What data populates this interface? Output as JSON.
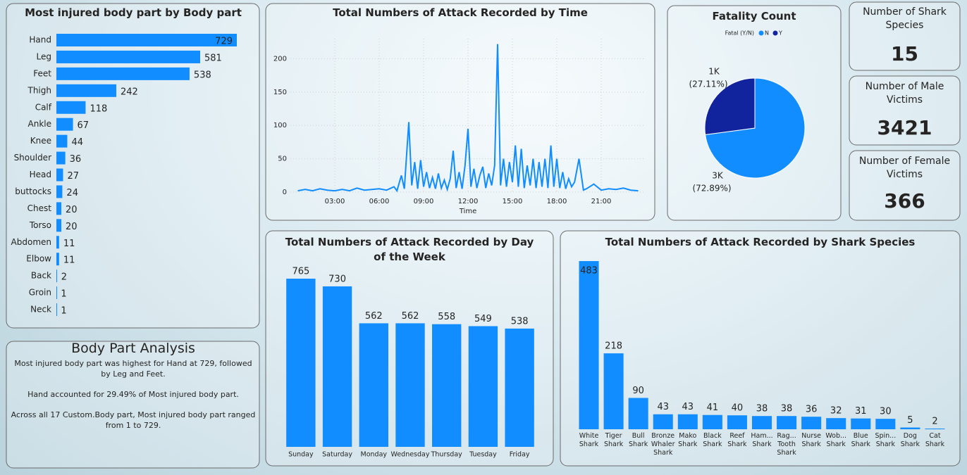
{
  "chart_data": [
    {
      "type": "bar",
      "orientation": "horizontal",
      "title": "Most injured body part by Body part",
      "color": "#118dff",
      "categories": [
        "Hand",
        "Leg",
        "Feet",
        "Thigh",
        "Calf",
        "Ankle",
        "Knee",
        "Shoulder",
        "Head",
        "buttocks",
        "Chest",
        "Torso",
        "Abdomen",
        "Elbow",
        "Back",
        "Groin",
        "Neck"
      ],
      "values": [
        729,
        581,
        538,
        242,
        118,
        67,
        44,
        36,
        27,
        24,
        20,
        20,
        11,
        11,
        2,
        1,
        1
      ]
    },
    {
      "type": "line",
      "title": "Total Numbers of Attack Recorded by Time",
      "x_label": "Time",
      "color": "#118dff",
      "x": [
        0.5,
        1,
        1.5,
        2,
        2.5,
        3,
        3.5,
        4,
        4.5,
        5,
        5.5,
        6,
        6.5,
        7,
        7.2,
        7.5,
        7.7,
        8,
        8.2,
        8.4,
        8.6,
        8.8,
        9,
        9.2,
        9.4,
        9.6,
        9.8,
        10,
        10.2,
        10.4,
        10.6,
        10.8,
        11,
        11.2,
        11.4,
        11.6,
        11.8,
        12,
        12.2,
        12.4,
        12.6,
        12.8,
        13,
        13.2,
        13.4,
        13.6,
        13.8,
        14,
        14.2,
        14.4,
        14.6,
        14.8,
        15,
        15.2,
        15.4,
        15.6,
        15.8,
        16,
        16.2,
        16.4,
        16.6,
        16.8,
        17,
        17.2,
        17.4,
        17.6,
        17.8,
        18,
        18.2,
        18.4,
        18.6,
        18.8,
        19,
        19.2,
        19.5,
        19.8,
        20,
        20.5,
        21,
        21.5,
        22,
        22.5,
        23,
        23.5
      ],
      "values": [
        2,
        4,
        2,
        5,
        3,
        2,
        4,
        2,
        6,
        3,
        4,
        5,
        3,
        8,
        2,
        25,
        5,
        105,
        10,
        45,
        5,
        48,
        8,
        30,
        6,
        22,
        5,
        28,
        6,
        18,
        4,
        20,
        62,
        6,
        30,
        5,
        40,
        95,
        8,
        35,
        6,
        25,
        38,
        6,
        28,
        10,
        40,
        222,
        10,
        50,
        8,
        45,
        15,
        70,
        8,
        65,
        6,
        40,
        10,
        50,
        6,
        45,
        8,
        50,
        6,
        70,
        8,
        50,
        6,
        30,
        5,
        20,
        8,
        15,
        50,
        3,
        5,
        12,
        3,
        5,
        4,
        6,
        3,
        2
      ],
      "xlim": [
        0,
        24
      ],
      "xticks": [
        {
          "value": 3,
          "label": "03:00"
        },
        {
          "value": 6,
          "label": "06:00"
        },
        {
          "value": 9,
          "label": "09:00"
        },
        {
          "value": 12,
          "label": "12:00"
        },
        {
          "value": 15,
          "label": "15:00"
        },
        {
          "value": 18,
          "label": "18:00"
        },
        {
          "value": 21,
          "label": "21:00"
        }
      ],
      "ylim": [
        0,
        230
      ],
      "yticks": [
        0,
        50,
        100,
        150,
        200
      ],
      "grid": true
    },
    {
      "type": "pie",
      "title": "Fatality Count",
      "legend_title": "Fatal (Y/N)",
      "categories": [
        "N",
        "Y"
      ],
      "colors": [
        "#118dff",
        "#12239e"
      ],
      "values": [
        72.89,
        27.11
      ],
      "value_labels": [
        "(72.89%)",
        "(27.11%)"
      ],
      "count_labels": [
        "3K",
        "1K"
      ]
    },
    {
      "type": "bar",
      "orientation": "vertical",
      "title": "Total Numbers of Attack Recorded by Day of the Week",
      "color": "#118dff",
      "categories": [
        "Sunday",
        "Saturday",
        "Monday",
        "Wednesday",
        "Thursday",
        "Tuesday",
        "Friday"
      ],
      "values": [
        765,
        730,
        562,
        562,
        558,
        549,
        538
      ]
    },
    {
      "type": "bar",
      "orientation": "vertical",
      "title": "Total Numbers of Attack Recorded by Shark Species",
      "color": "#118dff",
      "categories": [
        "White Shark",
        "Tiger Shark",
        "Bull Shark",
        "Bronze Whaler Shark",
        "Mako Shark",
        "Black Shark",
        "Reef Shark",
        "Ham... Shark",
        "Rag... Tooth Shark",
        "Nurse Shark",
        "Wob... Shark",
        "Blue Shark",
        "Spin... Shark",
        "Dog Shark",
        "Cat Shark"
      ],
      "values": [
        483,
        218,
        90,
        43,
        43,
        41,
        40,
        38,
        38,
        36,
        32,
        31,
        30,
        5,
        2
      ]
    }
  ],
  "cards": [
    {
      "title": "Number of Shark Species",
      "value": 15
    },
    {
      "title": "Number of Male Victims",
      "value": 3421
    },
    {
      "title": "Number of Female Victims",
      "value": 366
    }
  ],
  "analysis": {
    "title": "Body Part Analysis",
    "paragraphs": [
      "Most injured body part was highest for Hand at 729, followed by Leg and Feet.",
      "Hand accounted for 29.49% of Most injured body part.",
      "Across all 17 Custom.Body part, Most injured body part ranged from 1 to 729."
    ]
  }
}
